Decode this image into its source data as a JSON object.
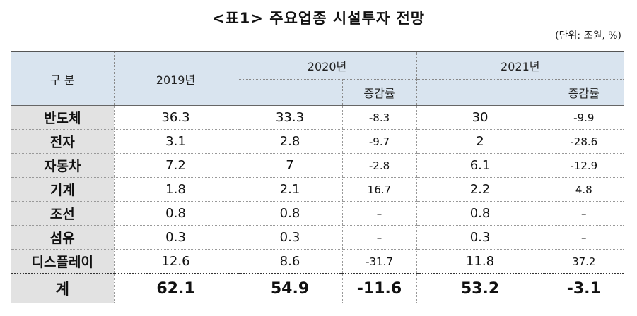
{
  "title": "<표1> 주요업종 시설투자 전망",
  "unit": "(단위: 조원, %)",
  "header": {
    "category": "구 분",
    "y2019": "2019년",
    "y2020": "2020년",
    "y2021": "2021년",
    "change": "증감률"
  },
  "rows": [
    {
      "name": "반도체",
      "v2019": "36.3",
      "v2020": "33.3",
      "c2020": "-8.3",
      "v2021": "30",
      "c2021": "-9.9"
    },
    {
      "name": "전자",
      "v2019": "3.1",
      "v2020": "2.8",
      "c2020": "-9.7",
      "v2021": "2",
      "c2021": "-28.6"
    },
    {
      "name": "자동차",
      "v2019": "7.2",
      "v2020": "7",
      "c2020": "-2.8",
      "v2021": "6.1",
      "c2021": "-12.9"
    },
    {
      "name": "기계",
      "v2019": "1.8",
      "v2020": "2.1",
      "c2020": "16.7",
      "v2021": "2.2",
      "c2021": "4.8"
    },
    {
      "name": "조선",
      "v2019": "0.8",
      "v2020": "0.8",
      "c2020": "–",
      "v2021": "0.8",
      "c2021": "–"
    },
    {
      "name": "섬유",
      "v2019": "0.3",
      "v2020": "0.3",
      "c2020": "–",
      "v2021": "0.3",
      "c2021": "–"
    },
    {
      "name": "디스플레이",
      "v2019": "12.6",
      "v2020": "8.6",
      "c2020": "-31.7",
      "v2021": "11.8",
      "c2021": "37.2"
    }
  ],
  "total": {
    "name": "계",
    "v2019": "62.1",
    "v2020": "54.9",
    "c2020": "-11.6",
    "v2021": "53.2",
    "c2021": "-3.1"
  }
}
